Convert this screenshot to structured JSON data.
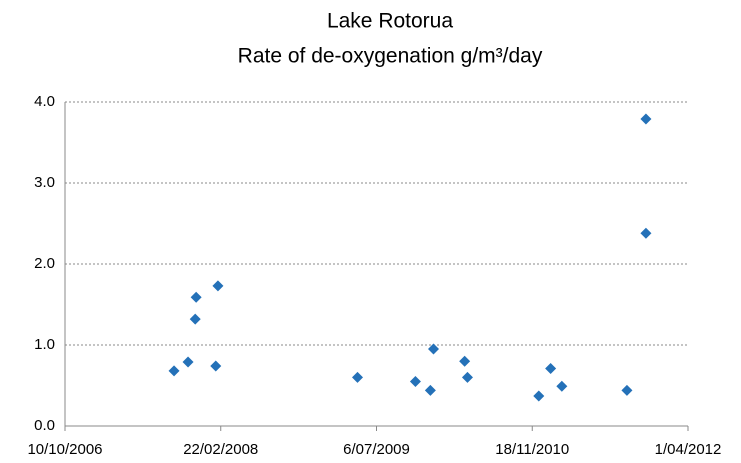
{
  "chart_data": {
    "type": "scatter",
    "title": "Lake Rotorua",
    "subtitle": "Rate of de-oxygenation g/m³/day",
    "color": "#2471b8",
    "grid": true,
    "xlim": [
      "2006-10-10",
      "2012-04-01"
    ],
    "xticks": [
      {
        "value": "2006-10-10",
        "label": "10/10/2006"
      },
      {
        "value": "2008-02-22",
        "label": "22/02/2008"
      },
      {
        "value": "2009-07-06",
        "label": "6/07/2009"
      },
      {
        "value": "2010-11-18",
        "label": "18/11/2010"
      },
      {
        "value": "2012-04-01",
        "label": "1/04/2012"
      }
    ],
    "ylim": [
      0,
      4
    ],
    "yticks": [
      {
        "value": 0,
        "label": "0.0"
      },
      {
        "value": 1,
        "label": "1.0"
      },
      {
        "value": 2,
        "label": "2.0"
      },
      {
        "value": 3,
        "label": "3.0"
      },
      {
        "value": 4,
        "label": "4.0"
      }
    ],
    "x": [
      "2007-09-25",
      "2007-11-09",
      "2007-12-02",
      "2007-12-05",
      "2008-02-13",
      "2008-02-06",
      "2009-05-06",
      "2009-11-08",
      "2009-12-26",
      "2010-01-05",
      "2010-04-15",
      "2010-04-24",
      "2010-12-09",
      "2011-01-16",
      "2011-02-21",
      "2011-09-18",
      "2011-11-18",
      "2011-11-18"
    ],
    "values": [
      0.68,
      0.79,
      1.32,
      1.59,
      1.73,
      0.74,
      0.6,
      0.55,
      0.44,
      0.95,
      0.8,
      0.6,
      0.37,
      0.71,
      0.49,
      0.44,
      3.79,
      2.38
    ]
  }
}
